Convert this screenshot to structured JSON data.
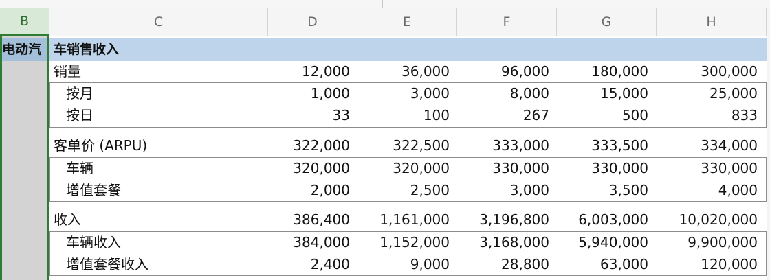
{
  "columns": {
    "headers": [
      "B",
      "C",
      "D",
      "E",
      "F",
      "G",
      "H"
    ],
    "selected": "B"
  },
  "section_title": "电动汽车销售收入",
  "column_b_title": "电动汽",
  "banner_text": "车销售收入",
  "rows": [
    {
      "label": "销量",
      "indent": false,
      "values": [
        "12,000",
        "36,000",
        "96,000",
        "180,000",
        "300,000"
      ]
    },
    {
      "label": "按月",
      "indent": true,
      "values": [
        "1,000",
        "3,000",
        "8,000",
        "15,000",
        "25,000"
      ]
    },
    {
      "label": "按日",
      "indent": true,
      "values": [
        "33",
        "100",
        "267",
        "500",
        "833"
      ]
    },
    {
      "label": "客单价 (ARPU)",
      "indent": false,
      "values": [
        "322,000",
        "322,500",
        "333,000",
        "333,500",
        "334,000"
      ]
    },
    {
      "label": "车辆",
      "indent": true,
      "values": [
        "320,000",
        "320,000",
        "330,000",
        "330,000",
        "330,000"
      ]
    },
    {
      "label": "增值套餐",
      "indent": true,
      "values": [
        "2,000",
        "2,500",
        "3,000",
        "3,500",
        "4,000"
      ]
    },
    {
      "label": "收入",
      "indent": false,
      "values": [
        "386,400",
        "1,161,000",
        "3,196,800",
        "6,003,000",
        "10,020,000"
      ]
    },
    {
      "label": "车辆收入",
      "indent": true,
      "values": [
        "384,000",
        "1,152,000",
        "3,168,000",
        "5,940,000",
        "9,900,000"
      ]
    },
    {
      "label": "增值套餐收入",
      "indent": true,
      "values": [
        "2,400",
        "9,000",
        "28,800",
        "63,000",
        "120,000"
      ]
    }
  ],
  "colors": {
    "selection_green": "#2e7d32",
    "banner_blue": "#bdd4ea",
    "column_b_fill": "#d3d3d3"
  }
}
